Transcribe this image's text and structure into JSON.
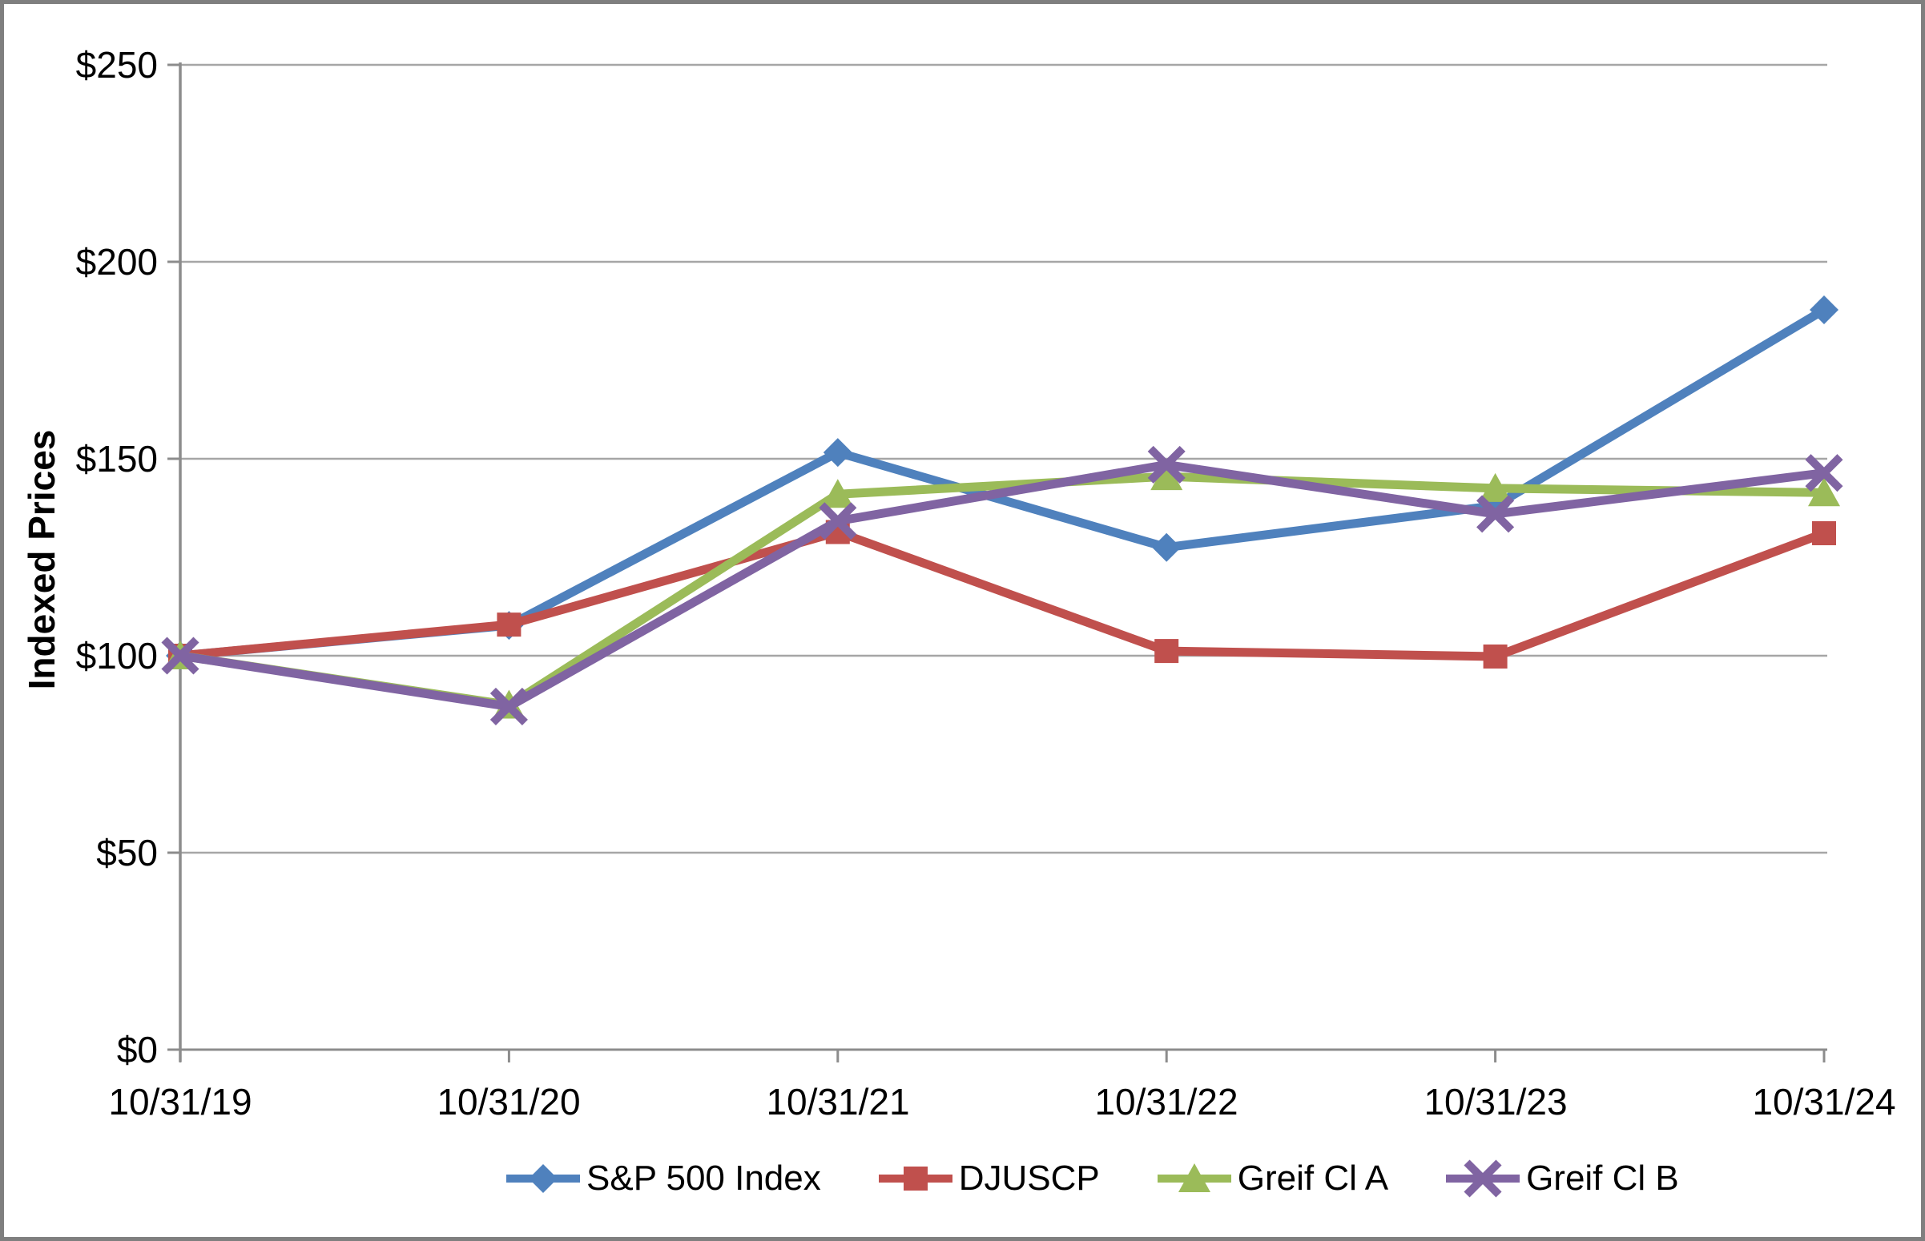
{
  "chart_data": {
    "type": "line",
    "title": "",
    "ylabel": "Indexed Prices",
    "xlabel": "",
    "ylim": [
      0,
      250
    ],
    "y_step": 50,
    "grid": true,
    "legend_position": "bottom",
    "y_tick_labels": [
      "$250",
      "$200",
      "$150",
      "$100",
      "$50",
      "$0"
    ],
    "categories": [
      "10/31/19",
      "10/31/20",
      "10/31/21",
      "10/31/22",
      "10/31/23",
      "10/31/24"
    ],
    "series": [
      {
        "name": "S&P 500 Index",
        "marker": "diamond",
        "color": "#4F81BD",
        "values": [
          100,
          107.7,
          151.6,
          127.5,
          138.1,
          187.8
        ]
      },
      {
        "name": "DJUSCP",
        "marker": "square",
        "color": "#C0504D",
        "values": [
          100,
          107.9,
          131.4,
          101.2,
          99.8,
          131.1
        ]
      },
      {
        "name": "Greif Cl A",
        "marker": "triangle",
        "color": "#9BBB59",
        "values": [
          100,
          87.5,
          141.0,
          145.5,
          142.5,
          141.4
        ]
      },
      {
        "name": "Greif Cl B",
        "marker": "x",
        "color": "#8064A2",
        "values": [
          100,
          87.1,
          134.2,
          148.5,
          136.0,
          146.4
        ]
      }
    ],
    "gridline_color": "#A6A6A6",
    "axis_color": "#8C8C8C",
    "frame_color": "#7F7F7F"
  }
}
